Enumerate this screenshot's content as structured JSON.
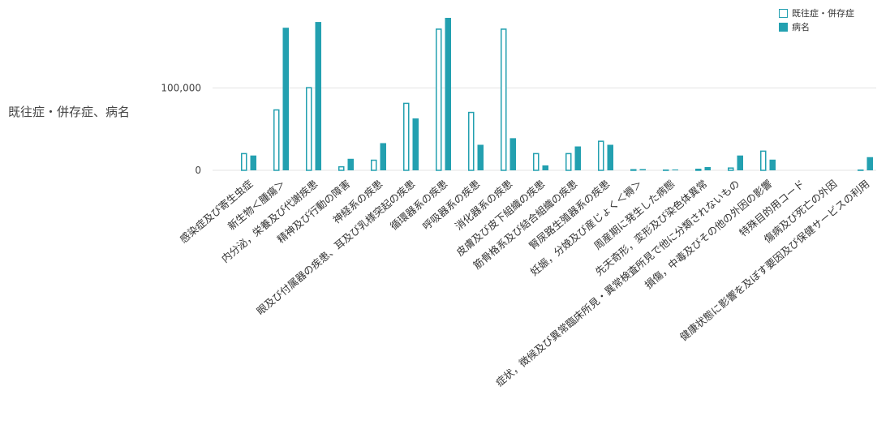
{
  "chart_data": {
    "type": "bar",
    "ylabel": "既往症・併存症、病名",
    "yticks": [
      0,
      100000
    ],
    "ytick_labels": [
      "0",
      "100,000"
    ],
    "ylim": [
      0,
      185000
    ],
    "grid": true,
    "legend_position": "top-right",
    "categories": [
      "感染症及び寄生虫症",
      "新生物＜腫瘍＞",
      "内分泌，栄養及び代謝疾患",
      "精神及び行動の障害",
      "神経系の疾患",
      "眼及び付属器の疾患、耳及び乳様突起の疾患",
      "循環器系の疾患",
      "呼吸器系の疾患",
      "消化器系の疾患",
      "皮膚及び皮下組織の疾患",
      "筋骨格系及び結合組織の疾患",
      "腎尿路生殖器系の疾患",
      "妊娠，分娩及び産じょく＜褥＞",
      "周産期に発生した病態",
      "先天奇形，変形及び染色体異常",
      "症状，徴候及び異常臨床所見・異常検査所見で他に分類されないもの",
      "損傷，中毒及びその他の外因の影響",
      "特殊目的用コード",
      "傷病及び死亡の外因",
      "健康状態に影響を及ぼす要因及び保健サービスの利用"
    ],
    "series": [
      {
        "name": "既往症・併存症",
        "color": "#23a0b0",
        "style": "outline",
        "values": [
          21000,
          74000,
          101000,
          5000,
          13000,
          82000,
          172000,
          71000,
          172000,
          21000,
          21000,
          36000,
          1500,
          1000,
          2000,
          3500,
          24000,
          0,
          0,
          1000
        ]
      },
      {
        "name": "病名",
        "color": "#23a0b0",
        "style": "filled",
        "values": [
          18000,
          173000,
          180000,
          14000,
          33000,
          63000,
          185000,
          31000,
          39000,
          6000,
          29000,
          31000,
          1500,
          1000,
          4000,
          18000,
          13000,
          0,
          0,
          16000
        ]
      }
    ]
  }
}
